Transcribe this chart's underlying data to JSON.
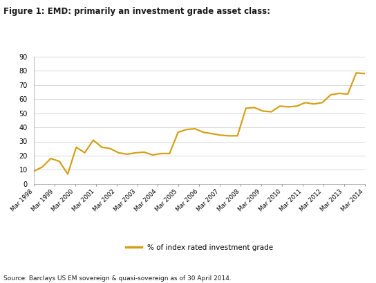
{
  "title": "Figure 1: EMD: primarily an investment grade asset class:",
  "source": "Source: Barclays US EM sovereign & quasi-sovereign as of 30 April 2014.",
  "legend_label": "% of index rated investment grade",
  "line_color": "#D4A017",
  "background_color": "#ffffff",
  "ylim": [
    0,
    90
  ],
  "yticks": [
    0,
    10,
    20,
    30,
    40,
    50,
    60,
    70,
    80,
    90
  ],
  "x_labels": [
    "Mar 1998",
    "Mar 1999",
    "Mar 2000",
    "Mar 2001",
    "Mar 2002",
    "Mar 2003",
    "Mar 2004",
    "Mar 2005",
    "Mar 2006",
    "Mar 2007",
    "Mar 2008",
    "Mar 2009",
    "Mar 2010",
    "Mar 2011",
    "Mar 2012",
    "Mar 2013",
    "Mar 2014"
  ],
  "y_values": [
    9.0,
    12.0,
    18.0,
    16.0,
    7.0,
    26.0,
    22.0,
    31.0,
    26.0,
    25.0,
    22.0,
    21.0,
    22.0,
    22.5,
    20.5,
    21.5,
    21.5,
    36.5,
    38.5,
    39.0,
    36.5,
    35.5,
    34.5,
    34.0,
    34.0,
    53.5,
    54.0,
    51.5,
    51.0,
    55.0,
    54.5,
    55.0,
    57.5,
    56.5,
    57.5,
    63.0,
    64.0,
    63.5,
    78.5,
    78.0
  ],
  "num_points": 40
}
